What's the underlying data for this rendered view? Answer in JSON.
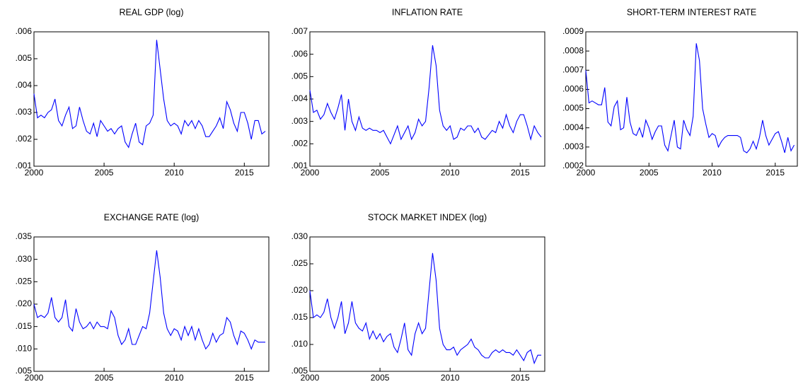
{
  "chart_data": [
    {
      "type": "line",
      "title": "REAL GDP (log)",
      "x": [
        2000,
        2000.25,
        2000.5,
        2000.75,
        2001,
        2001.25,
        2001.5,
        2001.75,
        2002,
        2002.25,
        2002.5,
        2002.75,
        2003,
        2003.25,
        2003.5,
        2003.75,
        2004,
        2004.25,
        2004.5,
        2004.75,
        2005,
        2005.25,
        2005.5,
        2005.75,
        2006,
        2006.25,
        2006.5,
        2006.75,
        2007,
        2007.25,
        2007.5,
        2007.75,
        2008,
        2008.25,
        2008.5,
        2008.75,
        2009,
        2009.25,
        2009.5,
        2009.75,
        2010,
        2010.25,
        2010.5,
        2010.75,
        2011,
        2011.25,
        2011.5,
        2011.75,
        2012,
        2012.25,
        2012.5,
        2012.75,
        2013,
        2013.25,
        2013.5,
        2013.75,
        2014,
        2014.25,
        2014.5,
        2014.75,
        2015,
        2015.25,
        2015.5,
        2015.75,
        2016,
        2016.25,
        2016.5
      ],
      "series": [
        {
          "color": "#0000ff",
          "values": [
            0.0037,
            0.0028,
            0.0029,
            0.0028,
            0.003,
            0.0031,
            0.0035,
            0.0027,
            0.0025,
            0.0029,
            0.0032,
            0.0024,
            0.0025,
            0.0032,
            0.0027,
            0.0023,
            0.0022,
            0.0026,
            0.0021,
            0.0027,
            0.0025,
            0.0023,
            0.0024,
            0.0022,
            0.0024,
            0.0025,
            0.0019,
            0.0017,
            0.0022,
            0.0026,
            0.0019,
            0.0018,
            0.0025,
            0.0026,
            0.0029,
            0.0057,
            0.0046,
            0.0035,
            0.0027,
            0.0025,
            0.0026,
            0.0025,
            0.0022,
            0.0027,
            0.0025,
            0.0027,
            0.0024,
            0.0027,
            0.0025,
            0.0021,
            0.0021,
            0.0023,
            0.0025,
            0.0028,
            0.0024,
            0.0034,
            0.0031,
            0.0026,
            0.0023,
            0.003,
            0.003,
            0.0026,
            0.002,
            0.0027,
            0.0027,
            0.0022,
            0.0023
          ]
        }
      ],
      "xlim": [
        2000,
        2016.75
      ],
      "xticks": [
        2000,
        2005,
        2010,
        2015
      ],
      "ylim": [
        0.001,
        0.006
      ],
      "yticks": [
        {
          "value": 0.001,
          "label": ".001"
        },
        {
          "value": 0.002,
          "label": ".002"
        },
        {
          "value": 0.003,
          "label": ".003"
        },
        {
          "value": 0.004,
          "label": ".004"
        },
        {
          "value": 0.005,
          "label": ".005"
        },
        {
          "value": 0.006,
          "label": ".006"
        }
      ]
    },
    {
      "type": "line",
      "title": "INFLATION RATE",
      "x": [
        2000,
        2000.25,
        2000.5,
        2000.75,
        2001,
        2001.25,
        2001.5,
        2001.75,
        2002,
        2002.25,
        2002.5,
        2002.75,
        2003,
        2003.25,
        2003.5,
        2003.75,
        2004,
        2004.25,
        2004.5,
        2004.75,
        2005,
        2005.25,
        2005.5,
        2005.75,
        2006,
        2006.25,
        2006.5,
        2006.75,
        2007,
        2007.25,
        2007.5,
        2007.75,
        2008,
        2008.25,
        2008.5,
        2008.75,
        2009,
        2009.25,
        2009.5,
        2009.75,
        2010,
        2010.25,
        2010.5,
        2010.75,
        2011,
        2011.25,
        2011.5,
        2011.75,
        2012,
        2012.25,
        2012.5,
        2012.75,
        2013,
        2013.25,
        2013.5,
        2013.75,
        2014,
        2014.25,
        2014.5,
        2014.75,
        2015,
        2015.25,
        2015.5,
        2015.75,
        2016,
        2016.25,
        2016.5
      ],
      "series": [
        {
          "color": "#0000ff",
          "values": [
            0.0044,
            0.0034,
            0.0035,
            0.0031,
            0.0033,
            0.0038,
            0.0034,
            0.0031,
            0.0036,
            0.0042,
            0.0026,
            0.004,
            0.003,
            0.0026,
            0.0032,
            0.0027,
            0.0026,
            0.0027,
            0.0026,
            0.0026,
            0.0025,
            0.0026,
            0.0023,
            0.002,
            0.0024,
            0.0028,
            0.0022,
            0.0025,
            0.0028,
            0.0022,
            0.0025,
            0.0031,
            0.0028,
            0.003,
            0.0045,
            0.0064,
            0.0055,
            0.0035,
            0.0028,
            0.0026,
            0.0028,
            0.0022,
            0.0023,
            0.0027,
            0.0026,
            0.0028,
            0.0028,
            0.0025,
            0.0027,
            0.0023,
            0.0022,
            0.0024,
            0.0026,
            0.0025,
            0.003,
            0.0027,
            0.0033,
            0.0028,
            0.0025,
            0.003,
            0.0033,
            0.0033,
            0.0028,
            0.0022,
            0.0028,
            0.0025,
            0.0023
          ]
        }
      ],
      "xlim": [
        2000,
        2016.75
      ],
      "xticks": [
        2000,
        2005,
        2010,
        2015
      ],
      "ylim": [
        0.001,
        0.007
      ],
      "yticks": [
        {
          "value": 0.001,
          "label": ".001"
        },
        {
          "value": 0.002,
          "label": ".002"
        },
        {
          "value": 0.003,
          "label": ".003"
        },
        {
          "value": 0.004,
          "label": ".004"
        },
        {
          "value": 0.005,
          "label": ".005"
        },
        {
          "value": 0.006,
          "label": ".006"
        },
        {
          "value": 0.007,
          "label": ".007"
        }
      ]
    },
    {
      "type": "line",
      "title": "SHORT-TERM INTEREST RATE",
      "x": [
        2000,
        2000.25,
        2000.5,
        2000.75,
        2001,
        2001.25,
        2001.5,
        2001.75,
        2002,
        2002.25,
        2002.5,
        2002.75,
        2003,
        2003.25,
        2003.5,
        2003.75,
        2004,
        2004.25,
        2004.5,
        2004.75,
        2005,
        2005.25,
        2005.5,
        2005.75,
        2006,
        2006.25,
        2006.5,
        2006.75,
        2007,
        2007.25,
        2007.5,
        2007.75,
        2008,
        2008.25,
        2008.5,
        2008.75,
        2009,
        2009.25,
        2009.5,
        2009.75,
        2010,
        2010.25,
        2010.5,
        2010.75,
        2011,
        2011.25,
        2011.5,
        2011.75,
        2012,
        2012.25,
        2012.5,
        2012.75,
        2013,
        2013.25,
        2013.5,
        2013.75,
        2014,
        2014.25,
        2014.5,
        2014.75,
        2015,
        2015.25,
        2015.5,
        2015.75,
        2016,
        2016.25,
        2016.5
      ],
      "series": [
        {
          "color": "#0000ff",
          "values": [
            0.0007,
            0.00053,
            0.00054,
            0.00053,
            0.00052,
            0.00052,
            0.00061,
            0.00043,
            0.00041,
            0.00051,
            0.00054,
            0.00039,
            0.0004,
            0.00056,
            0.00043,
            0.00037,
            0.00036,
            0.0004,
            0.00035,
            0.00044,
            0.0004,
            0.00034,
            0.00038,
            0.00041,
            0.00041,
            0.00031,
            0.00028,
            0.00036,
            0.00044,
            0.0003,
            0.00029,
            0.00044,
            0.00039,
            0.00036,
            0.00046,
            0.00084,
            0.00075,
            0.0005,
            0.00042,
            0.00035,
            0.00037,
            0.00036,
            0.0003,
            0.00033,
            0.00035,
            0.00036,
            0.00036,
            0.00036,
            0.00036,
            0.00035,
            0.00028,
            0.00027,
            0.00029,
            0.00033,
            0.00029,
            0.00035,
            0.00044,
            0.00036,
            0.00031,
            0.00034,
            0.00037,
            0.00038,
            0.00033,
            0.00027,
            0.00035,
            0.00028,
            0.00031
          ]
        }
      ],
      "xlim": [
        2000,
        2016.75
      ],
      "xticks": [
        2000,
        2005,
        2010,
        2015
      ],
      "ylim": [
        0.0002,
        0.0009
      ],
      "yticks": [
        {
          "value": 0.0002,
          "label": ".0002"
        },
        {
          "value": 0.0003,
          "label": ".0003"
        },
        {
          "value": 0.0004,
          "label": ".0004"
        },
        {
          "value": 0.0005,
          "label": ".0005"
        },
        {
          "value": 0.0006,
          "label": ".0006"
        },
        {
          "value": 0.0007,
          "label": ".0007"
        },
        {
          "value": 0.0008,
          "label": ".0008"
        },
        {
          "value": 0.0009,
          "label": ".0009"
        }
      ]
    },
    {
      "type": "line",
      "title": "EXCHANGE RATE (log)",
      "x": [
        2000,
        2000.25,
        2000.5,
        2000.75,
        2001,
        2001.25,
        2001.5,
        2001.75,
        2002,
        2002.25,
        2002.5,
        2002.75,
        2003,
        2003.25,
        2003.5,
        2003.75,
        2004,
        2004.25,
        2004.5,
        2004.75,
        2005,
        2005.25,
        2005.5,
        2005.75,
        2006,
        2006.25,
        2006.5,
        2006.75,
        2007,
        2007.25,
        2007.5,
        2007.75,
        2008,
        2008.25,
        2008.5,
        2008.75,
        2009,
        2009.25,
        2009.5,
        2009.75,
        2010,
        2010.25,
        2010.5,
        2010.75,
        2011,
        2011.25,
        2011.5,
        2011.75,
        2012,
        2012.25,
        2012.5,
        2012.75,
        2013,
        2013.25,
        2013.5,
        2013.75,
        2014,
        2014.25,
        2014.5,
        2014.75,
        2015,
        2015.25,
        2015.5,
        2015.75,
        2016,
        2016.25,
        2016.5
      ],
      "series": [
        {
          "color": "#0000ff",
          "values": [
            0.02,
            0.017,
            0.0175,
            0.017,
            0.018,
            0.0215,
            0.017,
            0.016,
            0.017,
            0.021,
            0.015,
            0.014,
            0.019,
            0.016,
            0.0145,
            0.015,
            0.016,
            0.0145,
            0.016,
            0.015,
            0.015,
            0.0145,
            0.0185,
            0.017,
            0.013,
            0.011,
            0.012,
            0.0145,
            0.011,
            0.011,
            0.013,
            0.015,
            0.0145,
            0.018,
            0.025,
            0.032,
            0.026,
            0.018,
            0.0145,
            0.013,
            0.0145,
            0.014,
            0.012,
            0.015,
            0.013,
            0.015,
            0.012,
            0.0145,
            0.012,
            0.01,
            0.011,
            0.0135,
            0.0115,
            0.013,
            0.0135,
            0.017,
            0.016,
            0.013,
            0.011,
            0.014,
            0.0135,
            0.012,
            0.01,
            0.012,
            0.0115,
            0.0115,
            0.0115
          ]
        }
      ],
      "xlim": [
        2000,
        2016.75
      ],
      "xticks": [
        2000,
        2005,
        2010,
        2015
      ],
      "ylim": [
        0.005,
        0.035
      ],
      "yticks": [
        {
          "value": 0.005,
          "label": ".005"
        },
        {
          "value": 0.01,
          "label": ".010"
        },
        {
          "value": 0.015,
          "label": ".015"
        },
        {
          "value": 0.02,
          "label": ".020"
        },
        {
          "value": 0.025,
          "label": ".025"
        },
        {
          "value": 0.03,
          "label": ".030"
        },
        {
          "value": 0.035,
          "label": ".035"
        }
      ]
    },
    {
      "type": "line",
      "title": "STOCK MARKET INDEX (log)",
      "x": [
        2000,
        2000.25,
        2000.5,
        2000.75,
        2001,
        2001.25,
        2001.5,
        2001.75,
        2002,
        2002.25,
        2002.5,
        2002.75,
        2003,
        2003.25,
        2003.5,
        2003.75,
        2004,
        2004.25,
        2004.5,
        2004.75,
        2005,
        2005.25,
        2005.5,
        2005.75,
        2006,
        2006.25,
        2006.5,
        2006.75,
        2007,
        2007.25,
        2007.5,
        2007.75,
        2008,
        2008.25,
        2008.5,
        2008.75,
        2009,
        2009.25,
        2009.5,
        2009.75,
        2010,
        2010.25,
        2010.5,
        2010.75,
        2011,
        2011.25,
        2011.5,
        2011.75,
        2012,
        2012.25,
        2012.5,
        2012.75,
        2013,
        2013.25,
        2013.5,
        2013.75,
        2014,
        2014.25,
        2014.5,
        2014.75,
        2015,
        2015.25,
        2015.5,
        2015.75,
        2016,
        2016.25,
        2016.5
      ],
      "series": [
        {
          "color": "#0000ff",
          "values": [
            0.02,
            0.015,
            0.0155,
            0.015,
            0.016,
            0.0185,
            0.015,
            0.013,
            0.015,
            0.018,
            0.012,
            0.014,
            0.018,
            0.014,
            0.013,
            0.0125,
            0.014,
            0.011,
            0.0125,
            0.011,
            0.012,
            0.0105,
            0.0115,
            0.012,
            0.0095,
            0.0085,
            0.011,
            0.014,
            0.009,
            0.008,
            0.012,
            0.014,
            0.012,
            0.013,
            0.02,
            0.027,
            0.022,
            0.013,
            0.01,
            0.009,
            0.009,
            0.0095,
            0.008,
            0.009,
            0.0095,
            0.01,
            0.011,
            0.0095,
            0.009,
            0.008,
            0.0075,
            0.0075,
            0.0085,
            0.009,
            0.0085,
            0.009,
            0.0085,
            0.0085,
            0.008,
            0.009,
            0.008,
            0.007,
            0.0085,
            0.009,
            0.0065,
            0.008,
            0.008
          ]
        }
      ],
      "xlim": [
        2000,
        2016.75
      ],
      "xticks": [
        2000,
        2005,
        2010,
        2015
      ],
      "ylim": [
        0.005,
        0.03
      ],
      "yticks": [
        {
          "value": 0.005,
          "label": ".005"
        },
        {
          "value": 0.01,
          "label": ".010"
        },
        {
          "value": 0.015,
          "label": ".015"
        },
        {
          "value": 0.02,
          "label": ".020"
        },
        {
          "value": 0.025,
          "label": ".025"
        },
        {
          "value": 0.03,
          "label": ".030"
        }
      ]
    }
  ]
}
